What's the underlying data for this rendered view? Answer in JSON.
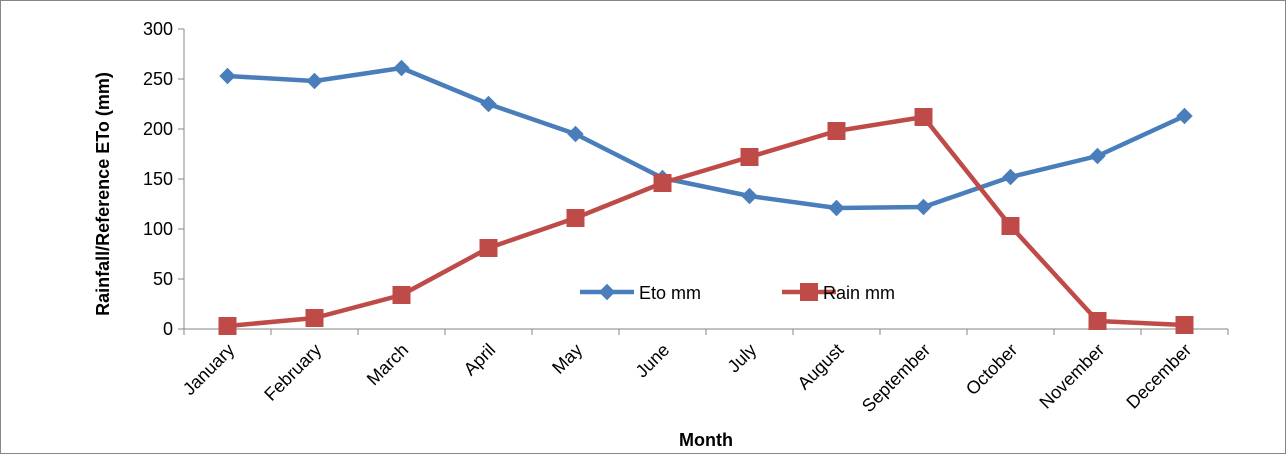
{
  "chart_data": {
    "type": "line",
    "title": "",
    "xlabel": "Month",
    "ylabel": "Rainfall/Reference ETo (mm)",
    "categories": [
      "January",
      "February",
      "March",
      "April",
      "May",
      "June",
      "July",
      "August",
      "September",
      "October",
      "November",
      "December"
    ],
    "ylim": [
      0,
      300
    ],
    "yticks": [
      "0",
      "50",
      "100",
      "150",
      "200",
      "250",
      "300"
    ],
    "grid": false,
    "legend_position": "center",
    "series": [
      {
        "name": "Eto  mm",
        "color": "#4a7ebb",
        "marker": "diamond",
        "values": [
          253,
          248,
          261,
          225,
          195,
          151,
          133,
          121,
          122,
          152,
          173,
          213
        ]
      },
      {
        "name": "Rain mm",
        "color": "#be4b48",
        "marker": "square",
        "values": [
          3,
          11,
          34,
          81,
          111,
          146,
          172,
          198,
          212,
          103,
          8,
          4
        ]
      }
    ]
  }
}
